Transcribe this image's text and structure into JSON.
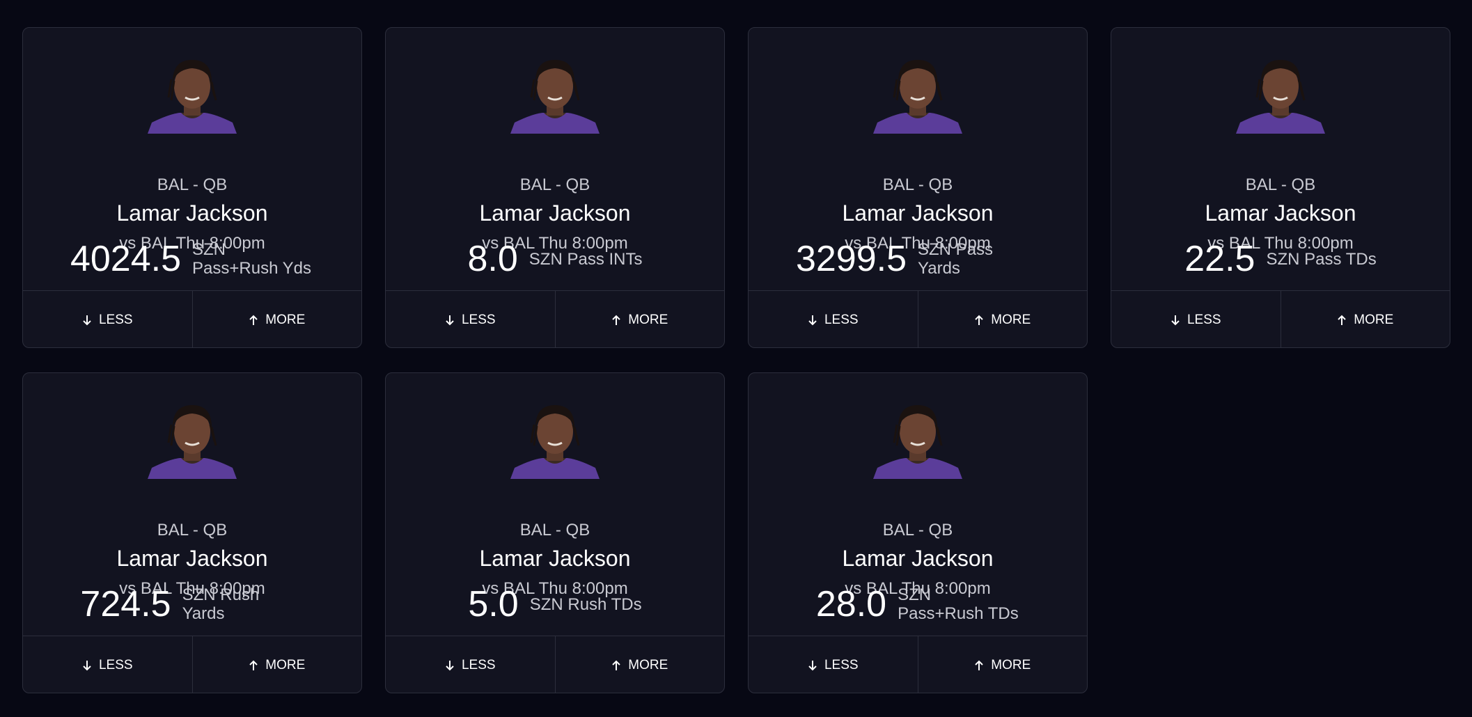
{
  "buttons": {
    "less": "LESS",
    "more": "MORE"
  },
  "cards": [
    {
      "team": "BAL - QB",
      "name": "Lamar Jackson",
      "game": "vs BAL Thu 8:00pm",
      "line": "4024.5",
      "stat": "SZN Pass+Rush Yds"
    },
    {
      "team": "BAL - QB",
      "name": "Lamar Jackson",
      "game": "vs BAL Thu 8:00pm",
      "line": "8.0",
      "stat": "SZN Pass INTs"
    },
    {
      "team": "BAL - QB",
      "name": "Lamar Jackson",
      "game": "vs BAL Thu 8:00pm",
      "line": "3299.5",
      "stat": "SZN Pass Yards"
    },
    {
      "team": "BAL - QB",
      "name": "Lamar Jackson",
      "game": "vs BAL Thu 8:00pm",
      "line": "22.5",
      "stat": "SZN Pass TDs"
    },
    {
      "team": "BAL - QB",
      "name": "Lamar Jackson",
      "game": "vs BAL Thu 8:00pm",
      "line": "724.5",
      "stat": "SZN Rush Yards"
    },
    {
      "team": "BAL - QB",
      "name": "Lamar Jackson",
      "game": "vs BAL Thu 8:00pm",
      "line": "5.0",
      "stat": "SZN Rush TDs"
    },
    {
      "team": "BAL - QB",
      "name": "Lamar Jackson",
      "game": "vs BAL Thu 8:00pm",
      "line": "28.0",
      "stat": "SZN Pass+Rush TDs"
    }
  ]
}
